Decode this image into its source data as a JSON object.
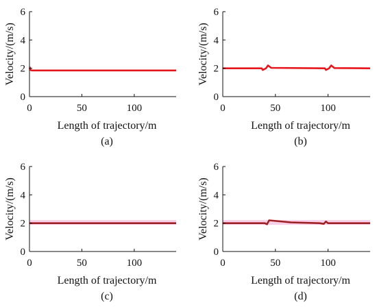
{
  "chart_data": [
    {
      "type": "line",
      "caption": "(a)",
      "xlabel": "Length of trajectory/m",
      "ylabel": "Velocity/(m/s)",
      "xlim": [
        0,
        140
      ],
      "ylim": [
        0,
        6
      ],
      "xticks": [
        0,
        50,
        100
      ],
      "yticks": [
        0,
        2,
        4,
        6
      ],
      "series": [
        {
          "color": "#e8141b",
          "x": [
            0,
            0.5,
            1,
            2,
            140
          ],
          "y": [
            1.95,
            2.05,
            1.88,
            1.85,
            1.85
          ]
        }
      ]
    },
    {
      "type": "line",
      "caption": "(b)",
      "xlabel": "Length of trajectory/m",
      "ylabel": "Velocity/(m/s)",
      "xlim": [
        0,
        140
      ],
      "ylim": [
        0,
        6
      ],
      "xticks": [
        0,
        50,
        100
      ],
      "yticks": [
        0,
        2,
        4,
        6
      ],
      "series": [
        {
          "color": "#e8141b",
          "x": [
            0,
            37,
            38,
            41,
            43,
            46,
            97,
            98,
            101,
            103,
            106,
            140
          ],
          "y": [
            2.0,
            2.0,
            1.88,
            2.0,
            2.2,
            2.03,
            2.0,
            1.88,
            2.0,
            2.2,
            2.02,
            2.0
          ]
        }
      ]
    },
    {
      "type": "line",
      "caption": "(c)",
      "xlabel": "Length of trajectory/m",
      "ylabel": "Velocity/(m/s)",
      "xlim": [
        0,
        140
      ],
      "ylim": [
        0,
        6
      ],
      "xticks": [
        0,
        50,
        100
      ],
      "yticks": [
        0,
        2,
        4,
        6
      ],
      "band": {
        "color": "#f5c8e8",
        "y": [
          1.88,
          2.22
        ]
      },
      "series": [
        {
          "color": "#e8141b",
          "x": [
            0,
            140
          ],
          "y": [
            2.0,
            2.0
          ]
        },
        {
          "color": "#7a2a2a",
          "x": [
            0,
            140
          ],
          "y": [
            2.0,
            2.0
          ]
        }
      ]
    },
    {
      "type": "line",
      "caption": "(d)",
      "xlabel": "Length of trajectory/m",
      "ylabel": "Velocity/(m/s)",
      "xlim": [
        0,
        140
      ],
      "ylim": [
        0,
        6
      ],
      "xticks": [
        0,
        50,
        100
      ],
      "yticks": [
        0,
        2,
        4,
        6
      ],
      "band": {
        "color": "#f5c8e8",
        "y": [
          1.88,
          2.22
        ]
      },
      "series": [
        {
          "color": "#e8141b",
          "x": [
            0,
            40,
            42,
            44,
            65,
            92,
            96,
            98,
            100,
            102,
            140
          ],
          "y": [
            2.0,
            2.0,
            1.92,
            2.2,
            2.05,
            2.0,
            1.95,
            2.12,
            2.0,
            2.0,
            2.0
          ]
        },
        {
          "color": "#7a2a2a",
          "x": [
            0,
            40,
            42,
            44,
            65,
            92,
            96,
            98,
            100,
            102,
            140
          ],
          "y": [
            2.0,
            2.0,
            1.92,
            2.2,
            2.05,
            2.0,
            1.95,
            2.12,
            2.0,
            2.0,
            2.0
          ]
        }
      ]
    }
  ]
}
